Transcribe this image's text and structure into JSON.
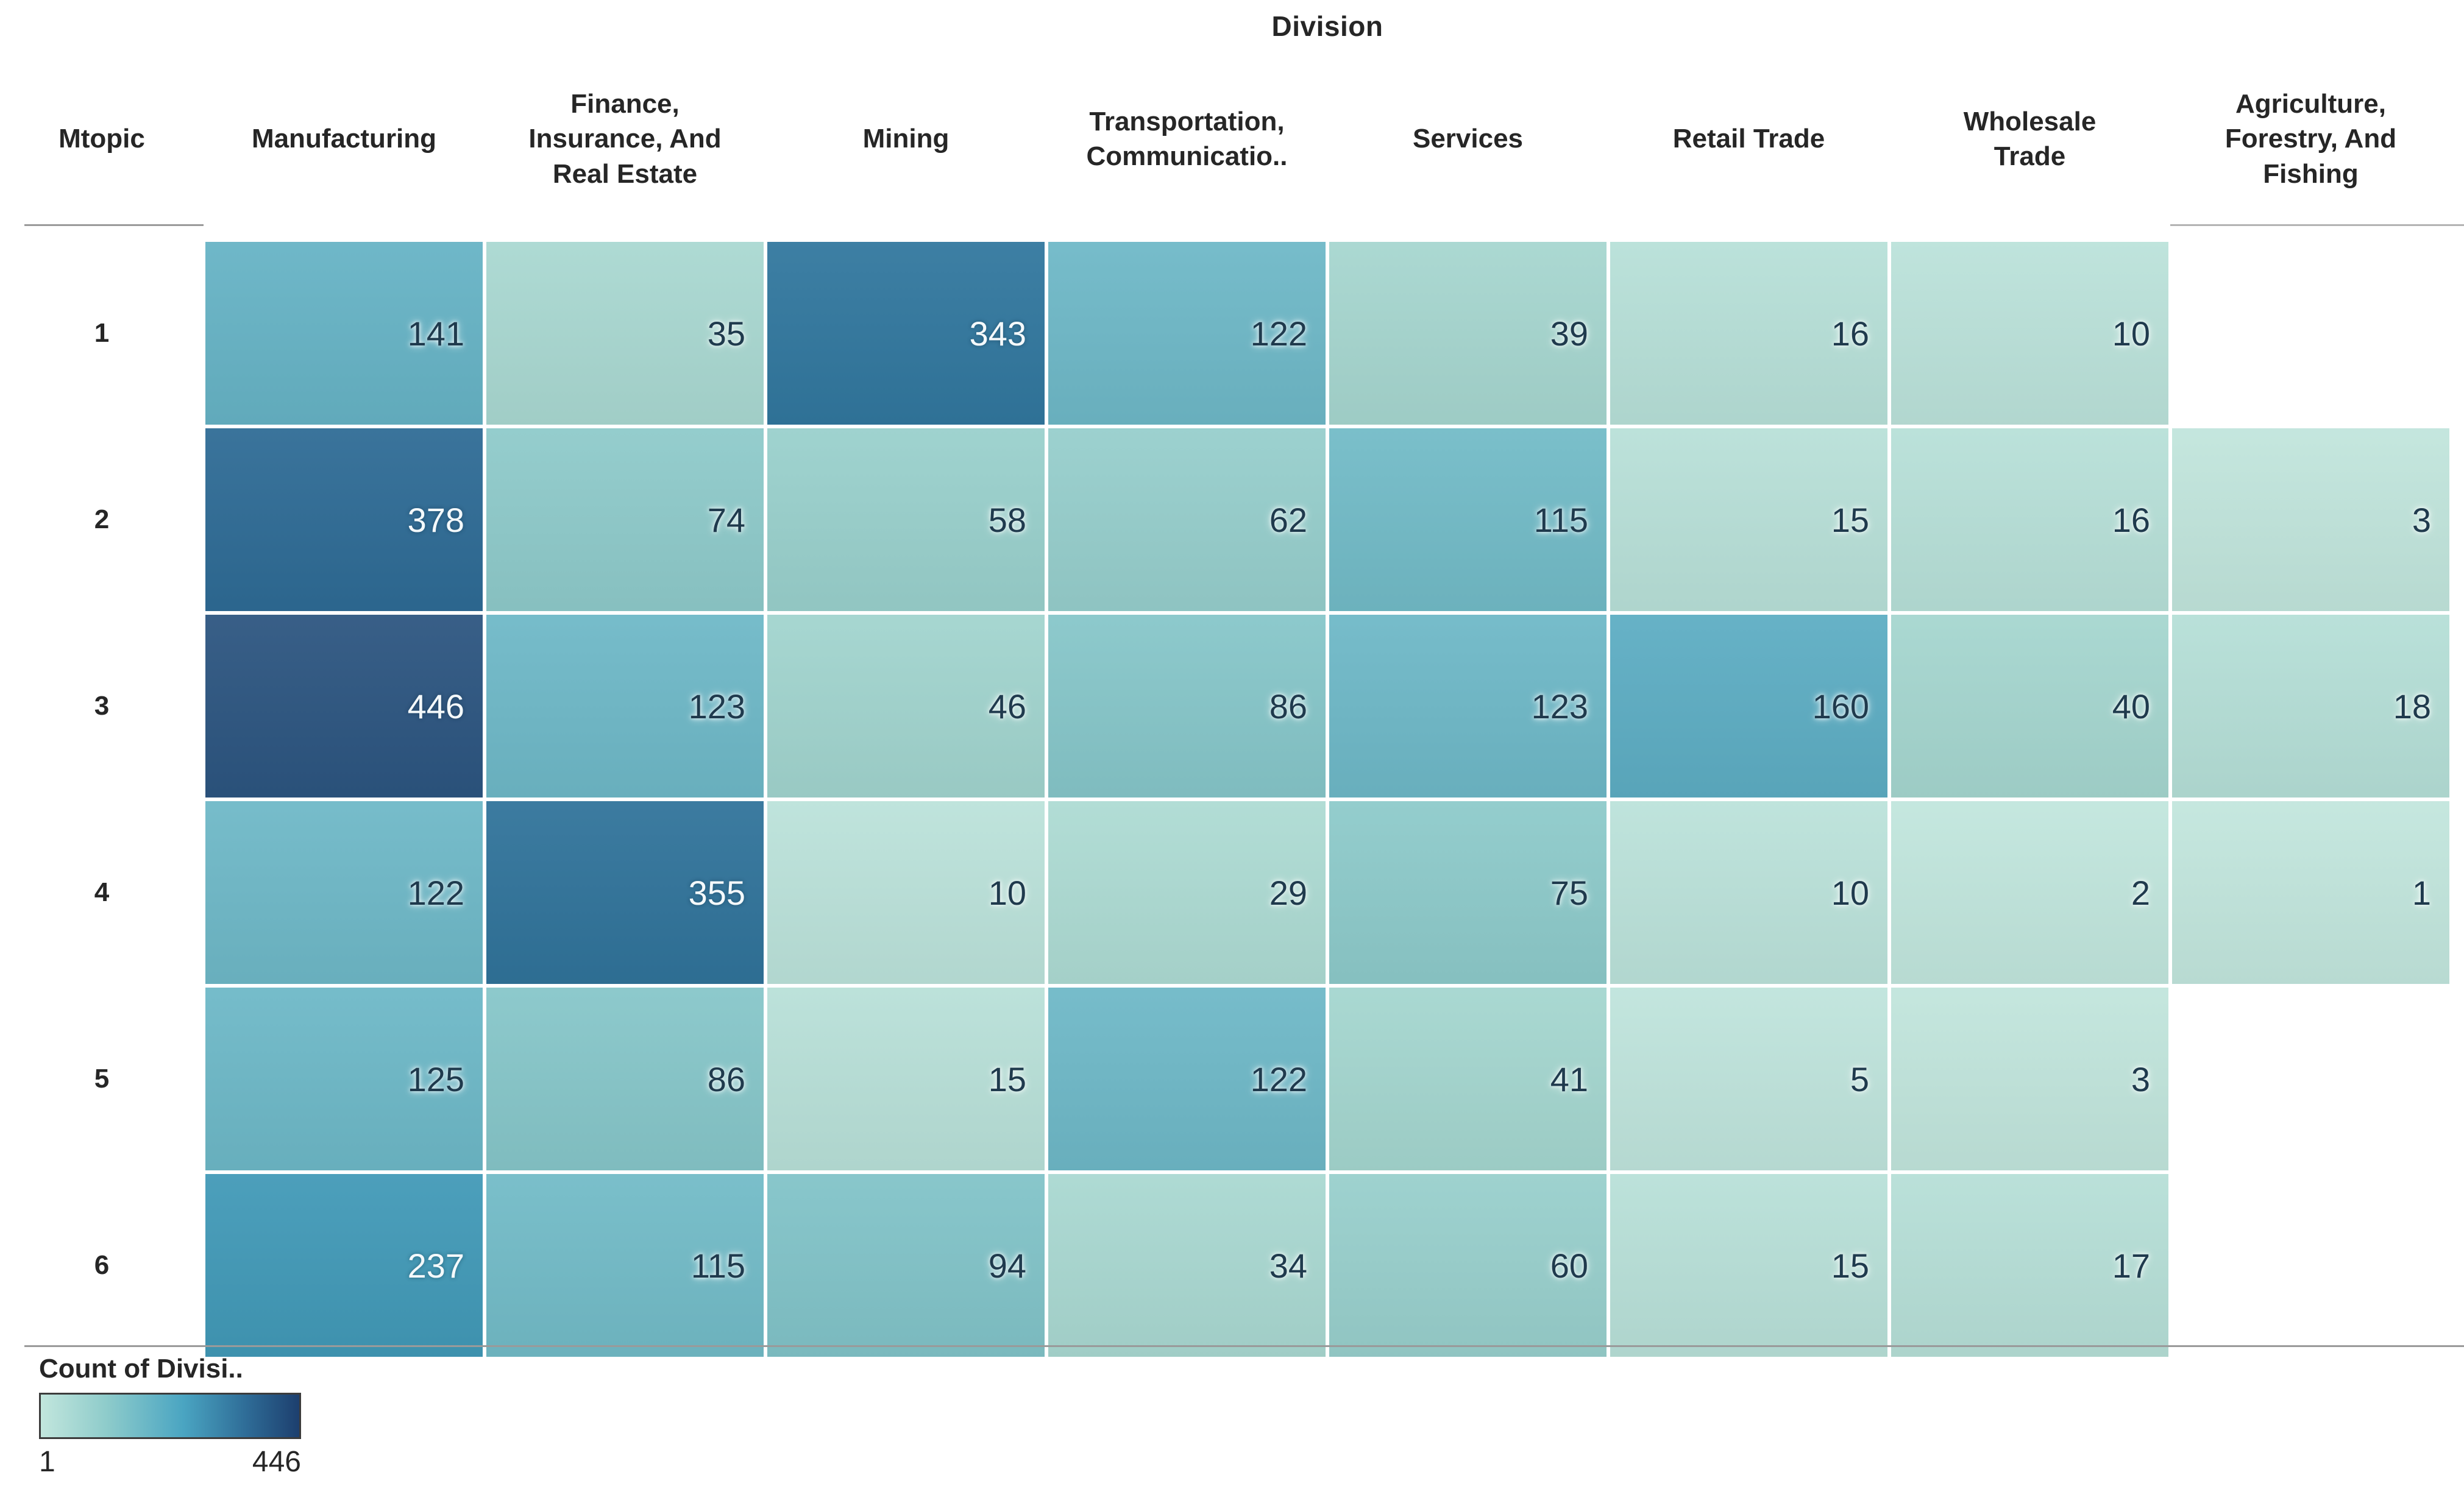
{
  "chart_data": {
    "type": "heatmap",
    "title": "Division",
    "row_header_label": "Mtopic",
    "columns": [
      "Manufacturing",
      "Finance,\nInsurance, And\nReal Estate",
      "Mining",
      "Transportation,\nCommunicatio..",
      "Services",
      "Retail Trade",
      "Wholesale\nTrade",
      "Agriculture,\nForestry, And\nFishing"
    ],
    "rows": [
      "1",
      "2",
      "3",
      "4",
      "5",
      "6"
    ],
    "values": [
      [
        141,
        35,
        343,
        122,
        39,
        16,
        10,
        null
      ],
      [
        378,
        74,
        58,
        62,
        115,
        15,
        16,
        3
      ],
      [
        446,
        123,
        46,
        86,
        123,
        160,
        40,
        18
      ],
      [
        122,
        355,
        10,
        29,
        75,
        10,
        2,
        1
      ],
      [
        125,
        86,
        15,
        122,
        41,
        5,
        3,
        null
      ],
      [
        237,
        115,
        94,
        34,
        60,
        15,
        17,
        null
      ]
    ],
    "legend": {
      "title": "Count of Divisi..",
      "min": "1",
      "max": "446",
      "position": "bottom-left"
    },
    "colors": {
      "scale_stops": [
        [
          1,
          "#c2e6dd"
        ],
        [
          40,
          "#a5d6cf"
        ],
        [
          80,
          "#8ac8c9"
        ],
        [
          120,
          "#6fb9c7"
        ],
        [
          160,
          "#5dadc3"
        ],
        [
          200,
          "#4da2bd"
        ],
        [
          240,
          "#4098b7"
        ],
        [
          300,
          "#3585aa"
        ],
        [
          360,
          "#2f7199"
        ],
        [
          400,
          "#2d6390"
        ],
        [
          446,
          "#2c5580"
        ]
      ],
      "value_text_dark": "#1f3a4d",
      "value_text_light": "#f4f9fb",
      "header_text": "#262626",
      "grid_line": "#9a9a9a",
      "light_text_threshold": 200
    }
  }
}
